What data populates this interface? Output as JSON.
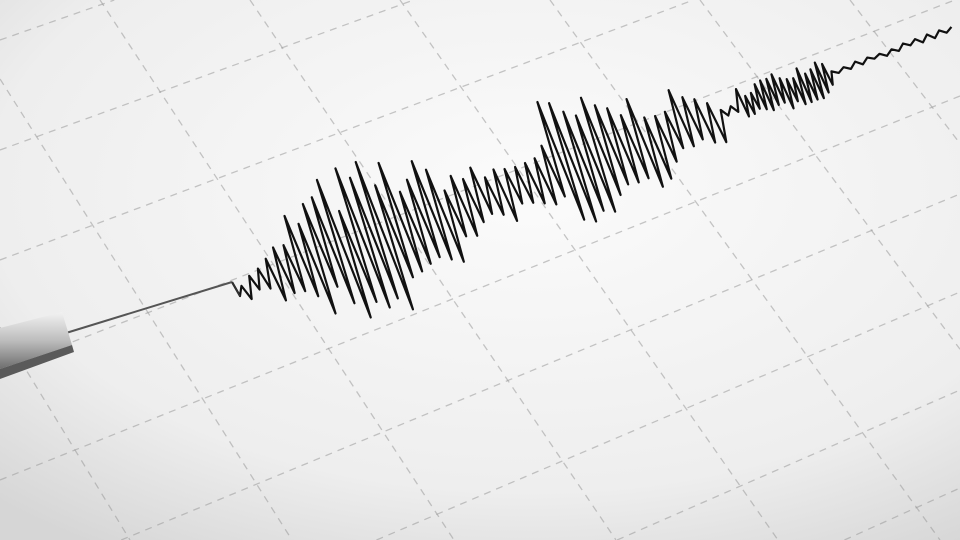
{
  "scene": {
    "subject": "seismograph-trace",
    "colors": {
      "paper": "#f4f4f4",
      "paper_shadow": "#d9d9d9",
      "grid": "#9a9a9a",
      "trace": "#111111",
      "pen_body": "#c8c8c8",
      "pen_needle": "#555555"
    }
  }
}
